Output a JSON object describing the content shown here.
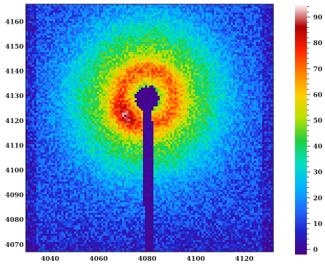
{
  "chart_data": {
    "type": "heatmap",
    "title": "",
    "xlabel": "",
    "ylabel": "",
    "xlim": [
      4030,
      4132
    ],
    "ylim": [
      4067,
      4167
    ],
    "x_ticks": [
      4040,
      4060,
      4080,
      4100,
      4120
    ],
    "y_ticks": [
      4070,
      4080,
      4090,
      4100,
      4110,
      4120,
      4130,
      4140,
      4150,
      4160
    ],
    "colorbar": {
      "min": -2,
      "max": 95,
      "ticks": [
        0,
        10,
        20,
        30,
        40,
        50,
        60,
        70,
        80,
        90
      ],
      "colormap": [
        "#4b0082",
        "#2222cc",
        "#1f6dff",
        "#00b7ff",
        "#00e0c0",
        "#20d040",
        "#b8e000",
        "#ffd000",
        "#ff8000",
        "#ff2000",
        "#b00000",
        "#ffffff"
      ]
    },
    "features": {
      "beam_center": [
        4080,
        4129
      ],
      "beamstop_radius": 4.5,
      "beamstop_arm_bottom_x": 4081,
      "ring_peak_radius": 11,
      "ring_peak_value": 75,
      "ring_hotspot": [
        4071,
        4122
      ]
    },
    "grid": false,
    "legend": "colorbar-right"
  }
}
